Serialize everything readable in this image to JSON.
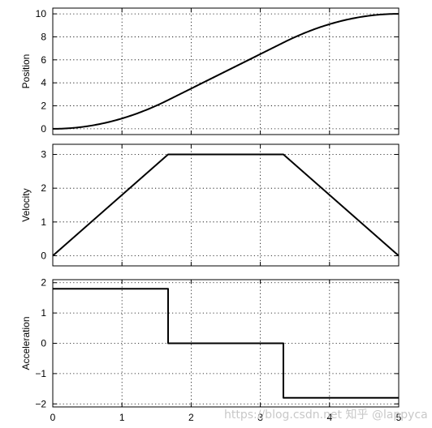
{
  "watermark": "https://blog.csdn.net 知乎 @lappyca",
  "chart_data": [
    {
      "type": "line",
      "ylabel": "Position",
      "x": [
        0,
        0.25,
        0.5,
        0.75,
        1.0,
        1.25,
        1.5,
        1.667,
        2.0,
        2.5,
        3.0,
        3.333,
        3.5,
        3.75,
        4.0,
        4.25,
        4.5,
        4.75,
        5.0
      ],
      "series": [
        {
          "values": [
            0,
            0.06,
            0.23,
            0.51,
            0.9,
            1.41,
            2.03,
            2.5,
            3.5,
            5.0,
            6.5,
            7.5,
            7.97,
            8.59,
            9.1,
            9.49,
            9.77,
            9.94,
            10.0
          ]
        }
      ],
      "xlim": [
        0,
        5
      ],
      "ylim": [
        -0.5,
        10.5
      ],
      "xticks": [
        0,
        1,
        2,
        3,
        4,
        5
      ],
      "yticks": [
        0,
        2,
        4,
        6,
        8,
        10
      ],
      "grid": true
    },
    {
      "type": "line",
      "ylabel": "Velocity",
      "x": [
        0,
        1.667,
        3.333,
        5.0
      ],
      "series": [
        {
          "values": [
            0,
            3,
            3,
            0
          ]
        }
      ],
      "xlim": [
        0,
        5
      ],
      "ylim": [
        -0.3,
        3.3
      ],
      "xticks": [
        0,
        1,
        2,
        3,
        4,
        5
      ],
      "yticks": [
        0,
        1,
        2,
        3
      ],
      "grid": true
    },
    {
      "type": "line",
      "ylabel": "Acceleration",
      "x": [
        0,
        1.667,
        1.667,
        3.333,
        3.333,
        5.0
      ],
      "series": [
        {
          "values": [
            1.8,
            1.8,
            0,
            0,
            -1.8,
            -1.8
          ]
        }
      ],
      "xlim": [
        0,
        5
      ],
      "ylim": [
        -2.1,
        2.1
      ],
      "xticks": [
        0,
        1,
        2,
        3,
        4,
        5
      ],
      "yticks": [
        -2,
        -1,
        0,
        1,
        2
      ],
      "grid": true,
      "show_xtick_labels": true
    }
  ]
}
